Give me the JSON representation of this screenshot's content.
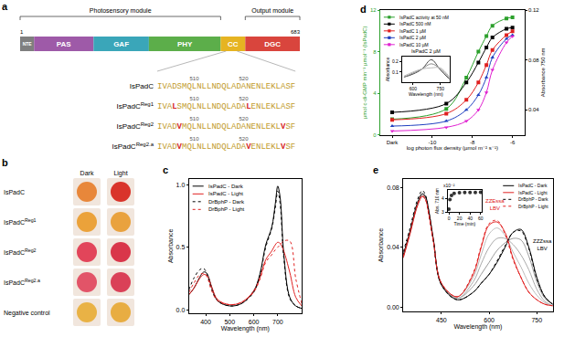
{
  "domain_diagram": {
    "label": "a",
    "protein": "IsPadC",
    "start": 1,
    "end": 683,
    "modules": [
      {
        "name": "Photosensory module",
        "from": 1,
        "to": 490
      },
      {
        "name": "Output module",
        "from": 550,
        "to": 683
      }
    ],
    "domains": [
      {
        "name": "NTE",
        "from": 1,
        "to": 35,
        "color": "#7f7f7f"
      },
      {
        "name": "PAS",
        "from": 35,
        "to": 180,
        "color": "#9e5aa8"
      },
      {
        "name": "GAF",
        "from": 180,
        "to": 315,
        "color": "#3aa6b9"
      },
      {
        "name": "PHY",
        "from": 315,
        "to": 490,
        "color": "#5cae4a"
      },
      {
        "name": "CC",
        "from": 490,
        "to": 550,
        "color": "#e6b422"
      },
      {
        "name": "DGC",
        "from": 550,
        "to": 683,
        "color": "#d9453d"
      }
    ],
    "first_residue": 503,
    "sequence_ticks": [
      510,
      520
    ],
    "sequences": [
      {
        "name": "IsPadC",
        "sequence": "IVADSMQLNLLNDQLADANENLEKLASF"
      },
      {
        "name": "IsPadC",
        "variant": "Reg1",
        "sequence": "IVALSMQLNLLNDQLADALENLEKLASF"
      },
      {
        "name": "IsPadC",
        "variant": "Reg2",
        "sequence": "IVADVMQLNLLNDQLADANENLEKLVSF"
      },
      {
        "name": "IsPadC",
        "variant": "Reg2.a",
        "sequence": "IVADVMQLNLLNDQLADAVENLEKLVSF"
      }
    ]
  },
  "colony_photos": {
    "label": "b",
    "columns": [
      "Dark",
      "Light"
    ],
    "rows": [
      {
        "name": "IsPadC",
        "colors": [
          "#e8873a",
          "#d9342b"
        ]
      },
      {
        "name": "IsPadC",
        "variant": "Reg1",
        "colors": [
          "#eba23a",
          "#e9a23e"
        ]
      },
      {
        "name": "IsPadC",
        "variant": "Reg2",
        "colors": [
          "#e2455a",
          "#d9364a"
        ]
      },
      {
        "name": "IsPadC",
        "variant": "Reg2.a",
        "colors": [
          "#e25468",
          "#da4158"
        ]
      },
      {
        "name": "Negative control",
        "colors": [
          "#e9b245",
          "#e8ad42"
        ]
      }
    ]
  },
  "chart_data": [
    {
      "label": "c",
      "type": "line",
      "xlabel": "Wavelength (nm)",
      "ylabel": "Absorbance",
      "x": [
        330,
        350,
        375,
        390,
        400,
        410,
        425,
        450,
        500,
        550,
        600,
        625,
        650,
        675,
        690,
        700,
        710,
        725,
        750,
        775,
        800
      ],
      "xlim": [
        330,
        800
      ],
      "xticks": [
        400,
        500,
        600,
        700
      ],
      "ylim": [
        -0.03,
        1.05
      ],
      "yticks": [
        {
          "value": 0,
          "label": "0.0"
        },
        {
          "value": 0.5,
          "label": "0.5"
        },
        {
          "value": 1,
          "label": "1.0"
        }
      ],
      "legend": "upper left",
      "series": [
        {
          "name": "IsPadC - Dark",
          "color": "#000000",
          "line_style": "solid",
          "values": [
            0.12,
            0.17,
            0.26,
            0.3,
            0.3,
            0.27,
            0.18,
            0.07,
            0.03,
            0.05,
            0.15,
            0.28,
            0.52,
            0.66,
            0.85,
            0.99,
            0.9,
            0.45,
            0.1,
            0.03,
            0.01
          ]
        },
        {
          "name": "IsPadC - Light",
          "color": "#e02020",
          "line_style": "solid",
          "values": [
            0.12,
            0.17,
            0.25,
            0.28,
            0.28,
            0.26,
            0.18,
            0.08,
            0.04,
            0.06,
            0.15,
            0.25,
            0.4,
            0.47,
            0.52,
            0.54,
            0.53,
            0.47,
            0.3,
            0.1,
            0.03
          ]
        },
        {
          "name": "DrBphP - Dark",
          "color": "#000000",
          "line_style": "dotted",
          "values": [
            0.16,
            0.25,
            0.32,
            0.33,
            0.31,
            0.26,
            0.16,
            0.07,
            0.03,
            0.05,
            0.14,
            0.27,
            0.5,
            0.65,
            0.82,
            0.95,
            0.85,
            0.42,
            0.09,
            0.03,
            0.01
          ]
        },
        {
          "name": "DrBphP - Light",
          "color": "#e02020",
          "line_style": "dotted",
          "values": [
            0.14,
            0.21,
            0.28,
            0.29,
            0.28,
            0.24,
            0.15,
            0.07,
            0.04,
            0.06,
            0.14,
            0.24,
            0.38,
            0.44,
            0.48,
            0.5,
            0.52,
            0.55,
            0.55,
            0.25,
            0.05
          ]
        }
      ]
    },
    {
      "label": "d",
      "type": "scatter",
      "xlabel": "log photon flux density (µmol m⁻² s⁻¹)",
      "ylabel": "µmol c-di-GMP min⁻¹ µmol⁻¹ (IsPadC)",
      "y2label": "Absorbance 750 nm",
      "x": [
        -12,
        -9.3,
        -8.3,
        -7.7,
        -7.3,
        -7,
        -6.3,
        -6
      ],
      "xlim": [
        -12.6,
        -5.4
      ],
      "xticks": [
        {
          "value": -12,
          "label": "Dark"
        },
        -10,
        -8,
        -6
      ],
      "ylim": [
        0,
        12
      ],
      "yticks": [
        0,
        4,
        8,
        12
      ],
      "y2lim": [
        0.02,
        0.12
      ],
      "y2ticks": [
        0.04,
        0.08,
        0.12
      ],
      "legend": "upper left",
      "series": [
        {
          "name": "IsPadC activity at 50 nM",
          "color": "#2ca02c",
          "marker": "square",
          "line_style": "solid",
          "values": [
            1.5,
            2.5,
            5.5,
            8,
            9.5,
            10.5,
            11.2,
            11.3
          ]
        },
        {
          "name": "IsPadC 500 nM",
          "color": "#000000",
          "marker": "square",
          "line_style": "solid",
          "axis": "y2",
          "values": [
            0.038,
            0.045,
            0.062,
            0.078,
            0.09,
            0.098,
            0.105,
            0.106
          ]
        },
        {
          "name": "IsPadC 1 µM",
          "color": "#e02020",
          "marker": "square",
          "line_style": "solid",
          "axis": "y2",
          "values": [
            0.032,
            0.037,
            0.048,
            0.062,
            0.076,
            0.088,
            0.1,
            0.103
          ]
        },
        {
          "name": "IsPadC 2 µM",
          "color": "#1f3fbf",
          "marker": "triangle-up",
          "line_style": "solid",
          "axis": "y2",
          "values": [
            0.027,
            0.031,
            0.04,
            0.052,
            0.066,
            0.082,
            0.097,
            0.1
          ]
        },
        {
          "name": "IsPadC 10 µM",
          "color": "#e020d0",
          "marker": "triangle-down",
          "line_style": "solid",
          "axis": "y2",
          "values": [
            0.023,
            0.026,
            0.031,
            0.04,
            0.054,
            0.072,
            0.094,
            0.099
          ]
        }
      ]
    },
    {
      "title": "IsPadC 2 µM",
      "type": "line",
      "xlabel": "Wavelength (nm)",
      "ylabel": "Absorbance",
      "x": [
        550,
        600,
        650,
        700,
        750,
        800
      ],
      "xlim": [
        540,
        800
      ],
      "xticks": [
        600,
        750
      ],
      "ylim": [
        0,
        0.25
      ],
      "yticks": [
        0.1,
        0.2
      ],
      "series": [
        {
          "color": "#444444",
          "values": [
            0.05,
            0.08,
            0.13,
            0.22,
            0.12,
            0.03
          ]
        },
        {
          "color": "#888888",
          "values": [
            0.05,
            0.09,
            0.13,
            0.18,
            0.13,
            0.04
          ]
        },
        {
          "color": "#bbbbbb",
          "values": [
            0.06,
            0.1,
            0.13,
            0.14,
            0.14,
            0.05
          ]
        }
      ]
    },
    {
      "label": "e",
      "type": "line",
      "xlabel": "Wavelength (nm)",
      "ylabel": "Absorbance",
      "x": [
        330,
        350,
        375,
        390,
        400,
        410,
        425,
        450,
        500,
        550,
        575,
        600,
        625,
        650,
        675,
        700,
        725,
        750,
        775,
        800
      ],
      "xlim": [
        330,
        800
      ],
      "xticks": [
        450,
        600,
        750
      ],
      "ylim": [
        -0.003,
        0.086
      ],
      "yticks": [
        {
          "value": 0,
          "label": "0.00"
        },
        {
          "value": 0.04,
          "label": "0.04"
        },
        {
          "value": 0.08,
          "label": "0.08"
        }
      ],
      "legend": "upper right",
      "series": [
        {
          "color": "#9a9a9a",
          "line_style": "solid",
          "values": [
            0.034,
            0.049,
            0.069,
            0.075,
            0.073,
            0.064,
            0.045,
            0.015,
            0.006,
            0.014,
            0.022,
            0.03,
            0.038,
            0.043,
            0.046,
            0.045,
            0.034,
            0.017,
            0.006,
            0.002
          ]
        },
        {
          "color": "#aaaaaa",
          "line_style": "solid",
          "values": [
            0.034,
            0.049,
            0.069,
            0.075,
            0.073,
            0.064,
            0.044,
            0.016,
            0.006,
            0.017,
            0.029,
            0.04,
            0.046,
            0.046,
            0.042,
            0.035,
            0.025,
            0.012,
            0.004,
            0.001
          ]
        },
        {
          "color": "#bbbbbb",
          "line_style": "solid",
          "values": [
            0.033,
            0.048,
            0.068,
            0.074,
            0.072,
            0.063,
            0.044,
            0.016,
            0.007,
            0.02,
            0.035,
            0.049,
            0.053,
            0.048,
            0.037,
            0.027,
            0.016,
            0.008,
            0.003,
            0.001
          ]
        },
        {
          "name": "IsPadC - Dark",
          "color": "#000000",
          "line_style": "solid",
          "values": [
            0.035,
            0.05,
            0.07,
            0.076,
            0.074,
            0.065,
            0.045,
            0.015,
            0.005,
            0.01,
            0.016,
            0.022,
            0.03,
            0.04,
            0.05,
            0.052,
            0.04,
            0.02,
            0.007,
            0.002
          ]
        },
        {
          "name": "IsPadC - Light",
          "color": "#e02020",
          "line_style": "solid",
          "values": [
            0.033,
            0.048,
            0.068,
            0.074,
            0.072,
            0.063,
            0.044,
            0.016,
            0.007,
            0.022,
            0.04,
            0.055,
            0.057,
            0.05,
            0.033,
            0.02,
            0.01,
            0.005,
            0.002,
            0.001
          ]
        },
        {
          "name": "DrBphP - Dark",
          "color": "#000000",
          "line_style": "dotted",
          "values": [
            0.037,
            0.052,
            0.072,
            0.078,
            0.075,
            0.064,
            0.044,
            0.015,
            0.005,
            0.01,
            0.016,
            0.022,
            0.031,
            0.041,
            0.05,
            0.051,
            0.039,
            0.019,
            0.007,
            0.002
          ]
        },
        {
          "name": "DrBphP - Light",
          "color": "#e02020",
          "line_style": "dotted",
          "values": [
            0.034,
            0.049,
            0.069,
            0.075,
            0.072,
            0.062,
            0.043,
            0.016,
            0.007,
            0.023,
            0.041,
            0.056,
            0.058,
            0.049,
            0.032,
            0.02,
            0.01,
            0.005,
            0.002,
            0.001
          ]
        }
      ],
      "annotations": [
        {
          "lines": [
            "ZZEssa",
            "LBV"
          ],
          "x": 618,
          "y": 0.063,
          "color": "#e02020"
        },
        {
          "lines": [
            "ZZZssa",
            "LBV"
          ],
          "x": 768,
          "y": 0.036,
          "color": "#000000"
        }
      ]
    },
    {
      "type": "scatter",
      "xlabel": "Time (min)",
      "ylabel": "Abs. 710 nm",
      "x": [
        0,
        2,
        5,
        10,
        20,
        30,
        40,
        50,
        60
      ],
      "xlim": [
        -2,
        62
      ],
      "xticks": [
        0,
        20,
        40,
        60
      ],
      "ylim": [
        3,
        4.6
      ],
      "yticks": [
        3,
        4
      ],
      "series": [
        {
          "color": "#333333",
          "marker": "circle",
          "values": [
            3.2,
            3.9,
            4.2,
            4.35,
            4.4,
            4.42,
            4.43,
            4.43,
            4.44
          ]
        }
      ],
      "annotations": [
        {
          "lines": [
            "x10⁻²"
          ],
          "x": 0,
          "y": 4.6,
          "color": "#000000"
        }
      ]
    }
  ]
}
